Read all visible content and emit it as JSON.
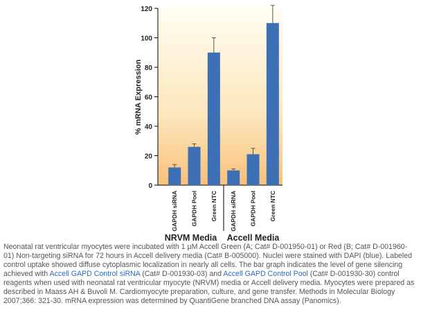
{
  "chart_data": {
    "type": "bar",
    "y_label": "% mRNA Expression",
    "groups": [
      {
        "name": "NRVM Media",
        "categories": [
          "GAPDH siRNA",
          "GAPDH Pool",
          "Green NTC"
        ],
        "values": [
          12,
          26,
          90
        ],
        "errors": [
          2,
          2,
          10
        ]
      },
      {
        "name": "Accell Media",
        "categories": [
          "GAPDH siRNA",
          "GAPDH Pool",
          "Green NTC"
        ],
        "values": [
          10,
          21,
          110
        ],
        "errors": [
          1,
          4,
          12
        ]
      }
    ],
    "color": "#3c6fb4",
    "ylim": [
      0,
      120
    ],
    "yticks": [
      0,
      20,
      40,
      60,
      80,
      100,
      120
    ]
  },
  "caption": [
    {
      "text": "Neonatal rat ventricular myocytes were incubated with 1 µM Accell Green (A; Cat# D-001950-01) or Red (B; Cat# D-001960-01) Non-targeting siRNA for 72 hours in Accell delivery media (Cat# B-005000). Nuclei were stained with DAPI (blue). Labeled control uptake showed diffuse cytoplasmic localization in nearly all cells. The bar graph indicates the level of gene silencing achieved with ",
      "link": false
    },
    {
      "text": "Accell GAPD Control siRNA",
      "link": true
    },
    {
      "text": " (Cat# D-001930-03) and ",
      "link": false
    },
    {
      "text": "Accell GAPD Control Pool",
      "link": true
    },
    {
      "text": " (Cat# D-001930-30) control reagents when used with neonatal rat ventricular myocyte (NRVM) media or Accell delivery media. Myocytes were prepared as described in Maass AH & Buvoli M. Cardiomyocyte preparation, culture, and gene transfer. Methods in Molecular Biology 2007;366: 321-30. mRNA expression was determined by QuantiGene branched DNA assay (Panomics).",
      "link": false
    }
  ]
}
